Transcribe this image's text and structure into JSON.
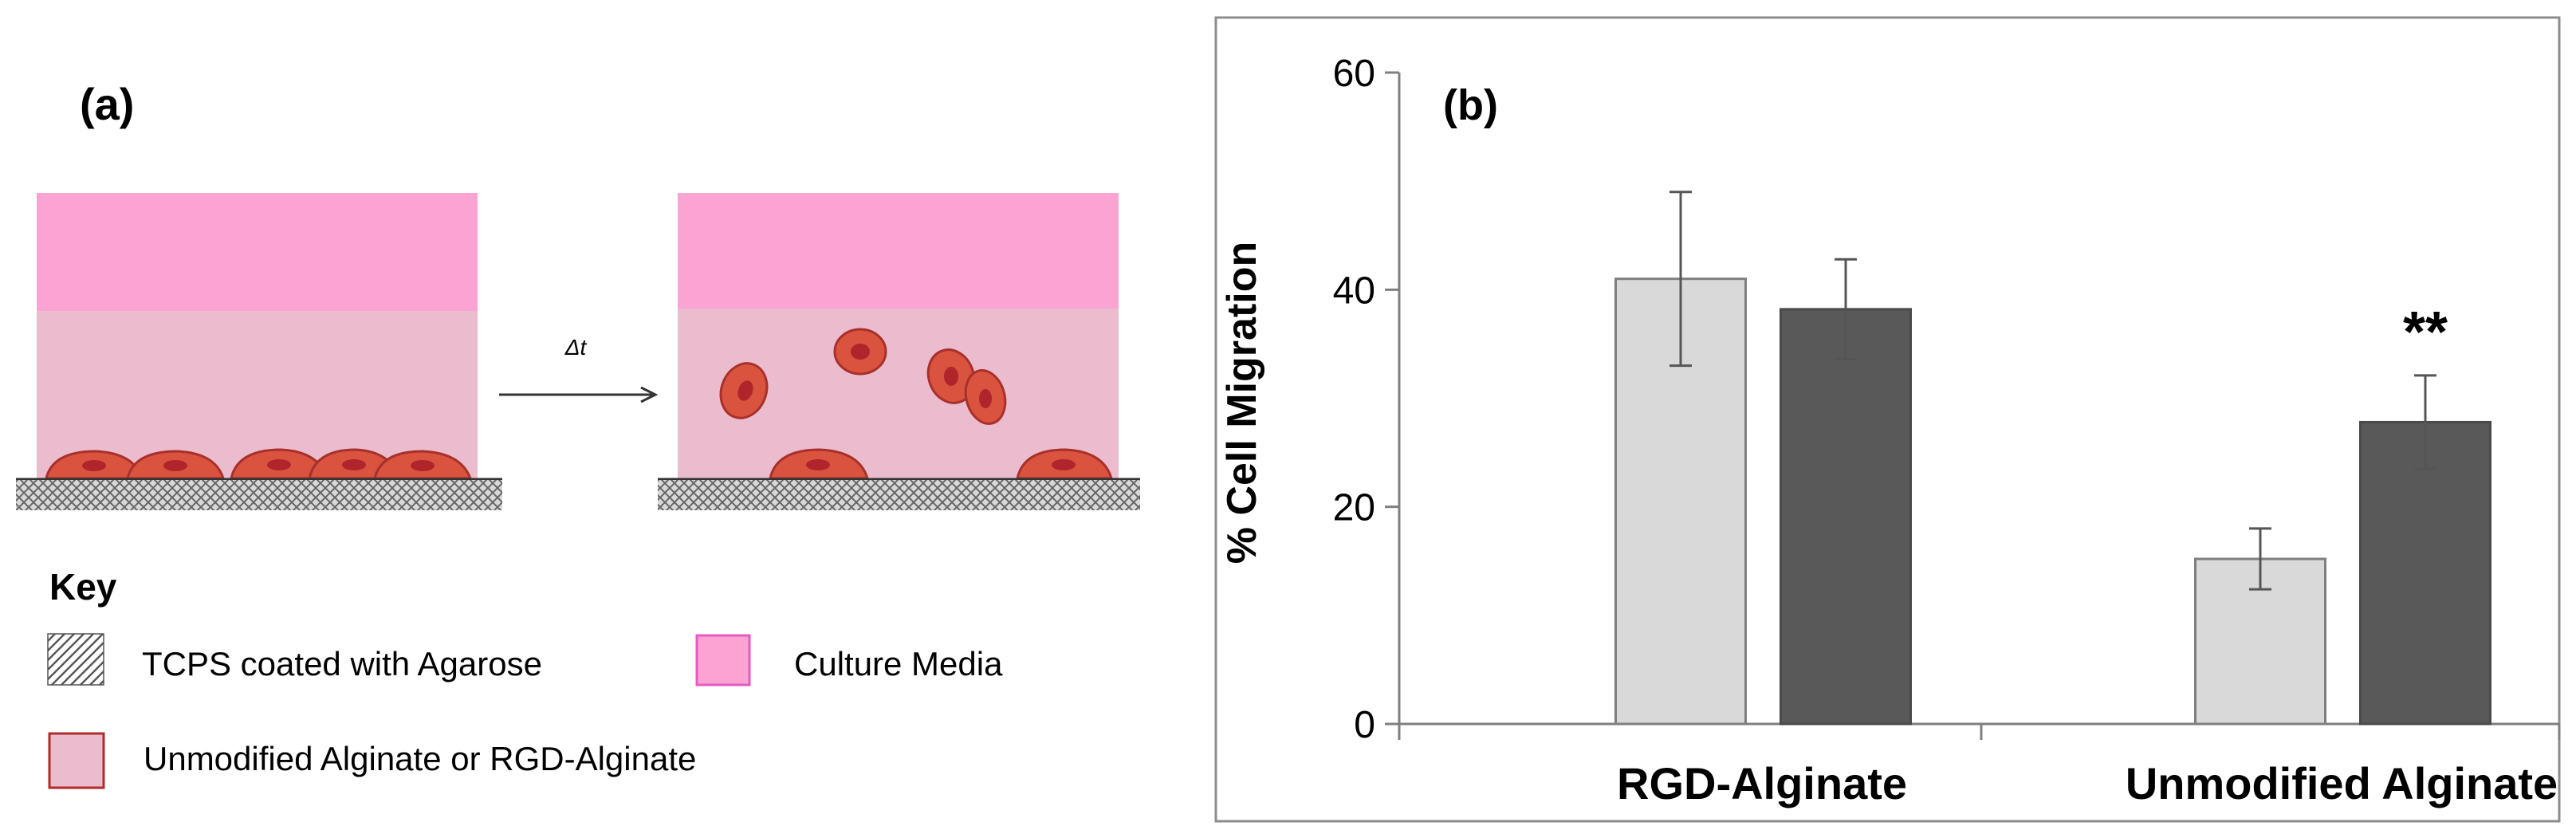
{
  "panel_a": {
    "label": "(a)",
    "arrow_label": "Δt",
    "key": {
      "title": "Key",
      "items": [
        {
          "label": "TCPS coated with Agarose",
          "swatch": "hatch"
        },
        {
          "label": "Culture Media",
          "swatch": "media"
        },
        {
          "label": "Unmodified Alginate or RGD-Alginate",
          "swatch": "gel"
        }
      ]
    }
  },
  "colors": {
    "media": "#fba4d3",
    "media_border": "#e65ac2",
    "gel": "#ebbccd",
    "gel_border": "#b02c2c",
    "cell_fill": "#d9533f",
    "cell_stroke": "#a8302b",
    "nucleus": "#b0242b",
    "light_bar": "#d9d9d9",
    "dark_bar": "#595959",
    "axis": "#7f7f7f"
  },
  "chart_data": {
    "type": "bar",
    "panel_label": "(b)",
    "title": "",
    "xlabel": "",
    "ylabel": "% Cell Migration",
    "ylim": [
      0,
      60
    ],
    "yticks": [
      0,
      20,
      40,
      60
    ],
    "categories": [
      "RGD-Alginate",
      "Unmodified Alginate"
    ],
    "series": [
      {
        "name": "light",
        "values": [
          41,
          15.2
        ],
        "errors": [
          8,
          2.8
        ]
      },
      {
        "name": "dark",
        "values": [
          38.2,
          27.8
        ],
        "errors": [
          4.6,
          4.3
        ]
      }
    ],
    "annotations": [
      {
        "category": 1,
        "series": 1,
        "text": "**"
      }
    ]
  }
}
